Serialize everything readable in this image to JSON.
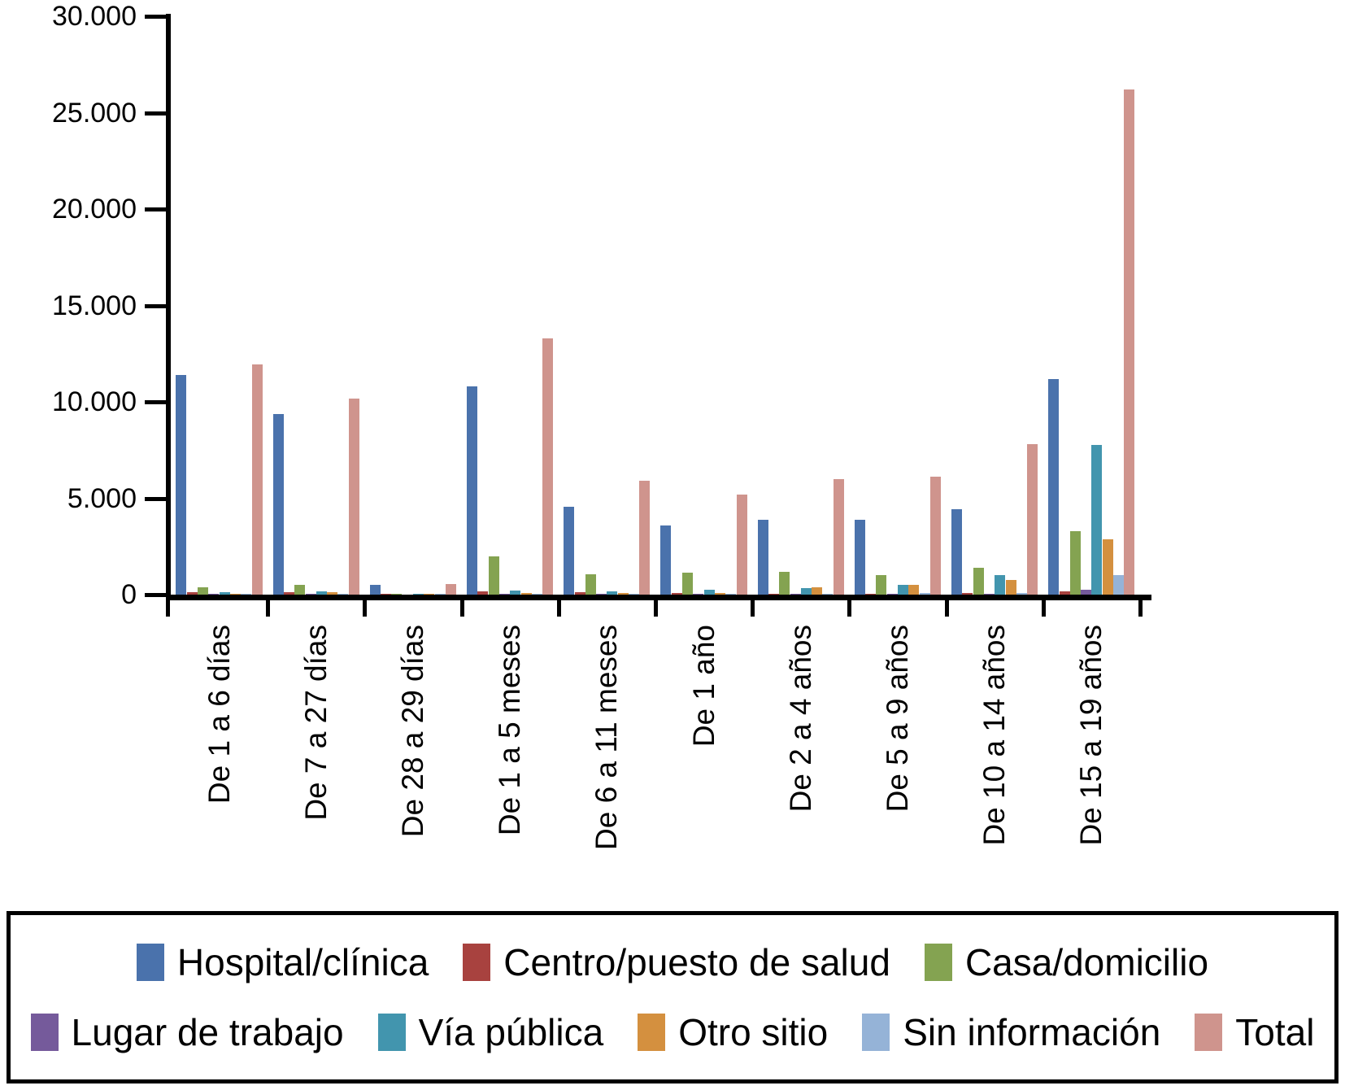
{
  "chart_data": {
    "type": "bar",
    "title": "",
    "xlabel": "",
    "ylabel": "",
    "categories": [
      "De 1 a 6 días",
      "De 7 a 27 días",
      "De 28 a 29 días",
      "De 1 a 5 meses",
      "De 6 a 11 meses",
      "De 1 año",
      "De 2 a 4 años",
      "De 5 a 9 años",
      "De 10 a 14 años",
      "De 15 a 19 años"
    ],
    "series": [
      {
        "name": "Hospital/clínica",
        "color": "#4A72AC",
        "values": [
          11400,
          9350,
          500,
          10800,
          4550,
          3600,
          3900,
          3900,
          4450,
          11200
        ]
      },
      {
        "name": "Centro/puesto de salud",
        "color": "#A8423F",
        "values": [
          130,
          110,
          20,
          150,
          110,
          100,
          60,
          60,
          70,
          150
        ]
      },
      {
        "name": "Casa/domicilio",
        "color": "#84A351",
        "values": [
          380,
          490,
          30,
          2000,
          1050,
          1150,
          1200,
          1000,
          1400,
          3300
        ]
      },
      {
        "name": "Lugar de trabajo",
        "color": "#755A9B",
        "values": [
          40,
          20,
          0,
          30,
          20,
          30,
          30,
          40,
          60,
          250
        ]
      },
      {
        "name": "Vía pública",
        "color": "#4295AE",
        "values": [
          140,
          150,
          10,
          200,
          160,
          250,
          350,
          500,
          1000,
          7750
        ]
      },
      {
        "name": "Otro sitio",
        "color": "#D4903F",
        "values": [
          40,
          110,
          10,
          100,
          100,
          80,
          400,
          500,
          750,
          2850
        ]
      },
      {
        "name": "Sin información",
        "color": "#95B3D7",
        "values": [
          30,
          50,
          10,
          50,
          50,
          50,
          60,
          80,
          100,
          1000
        ]
      },
      {
        "name": "Total",
        "color": "#CF948D",
        "values": [
          11950,
          10150,
          550,
          13300,
          5900,
          5200,
          6000,
          6100,
          7800,
          26200
        ]
      }
    ],
    "y_axis": {
      "min": 0,
      "max": 30000,
      "tick_interval": 5000,
      "tick_labels": [
        "0",
        "5.000",
        "10.000",
        "15.000",
        "20.000",
        "25.000",
        "30.000"
      ]
    },
    "legend": {
      "position": "bottom",
      "rows": [
        [
          0,
          1,
          2
        ],
        [
          3,
          4,
          5,
          6,
          7
        ]
      ]
    },
    "grid": false
  }
}
